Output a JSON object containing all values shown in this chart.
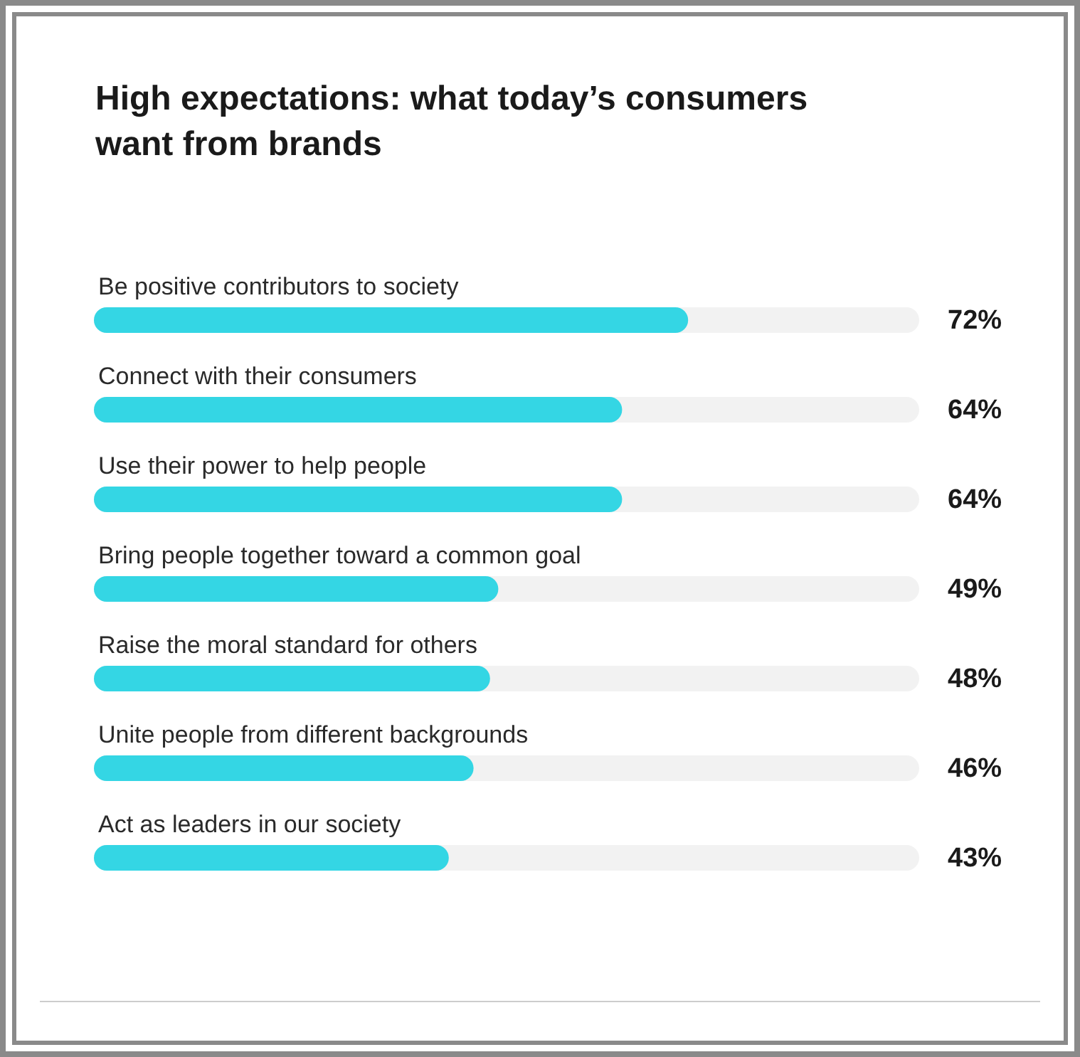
{
  "chart_data": {
    "type": "bar",
    "orientation": "horizontal",
    "title": "High expectations: what today’s consumers want from brands",
    "categories": [
      "Be positive contributors to society",
      "Connect with their consumers",
      "Use their power to help people",
      "Bring people together toward a common goal",
      "Raise the moral standard for others",
      "Unite people from different backgrounds",
      "Act as leaders in our society"
    ],
    "values": [
      72,
      64,
      64,
      49,
      48,
      46,
      43
    ],
    "value_labels": [
      "72%",
      "64%",
      "64%",
      "49%",
      "48%",
      "46%",
      "43%"
    ],
    "color": "#34d6e4",
    "xlim": [
      0,
      100
    ]
  }
}
